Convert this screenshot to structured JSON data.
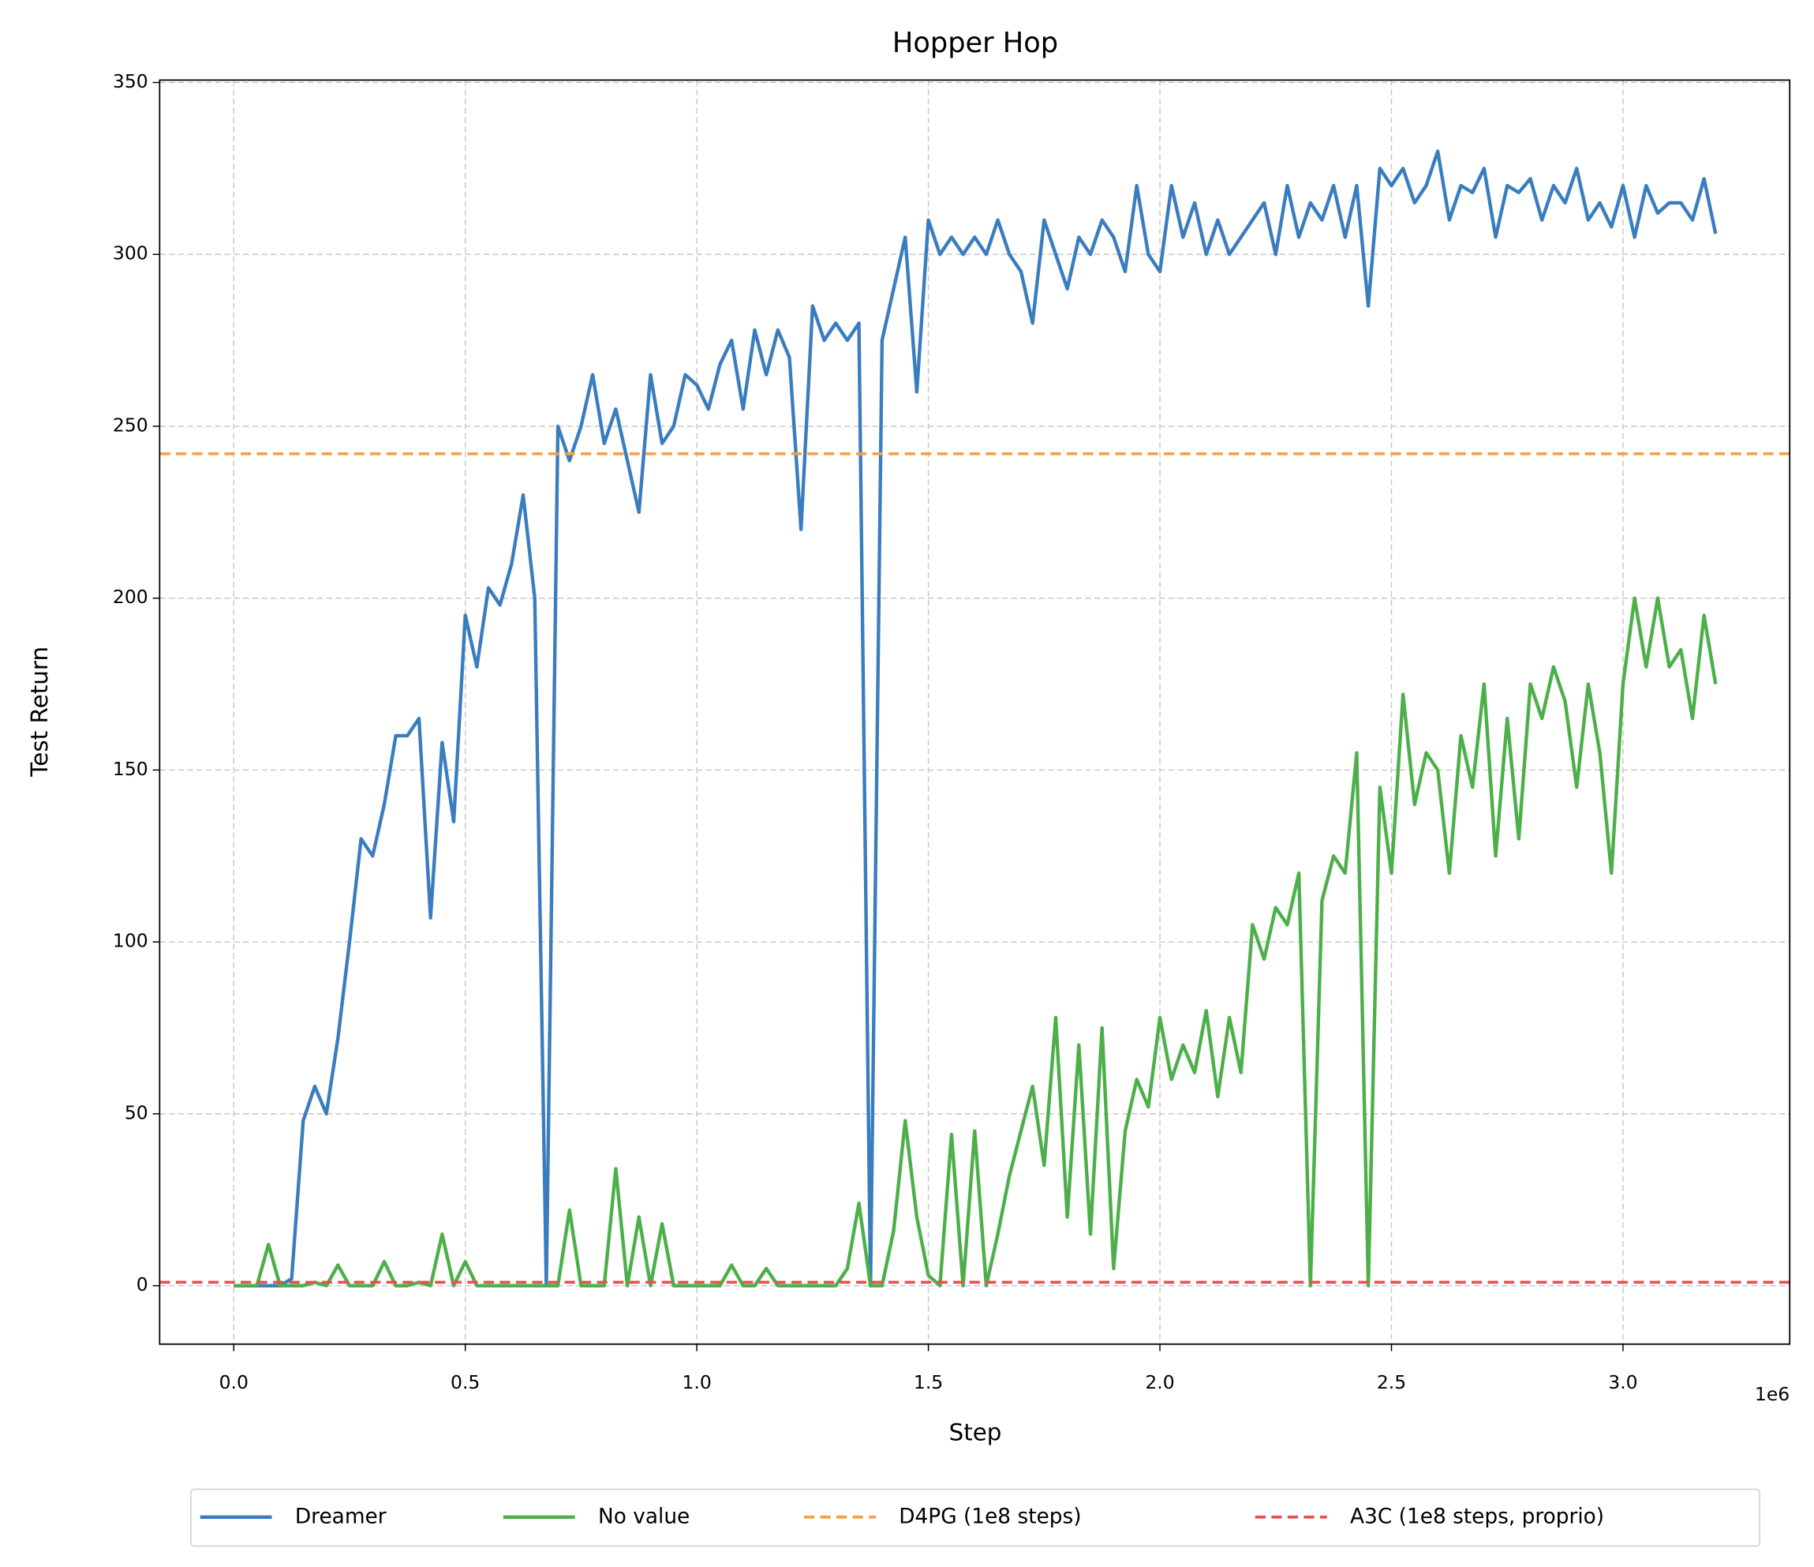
{
  "chart_data": {
    "type": "line",
    "title": "Hopper Hop",
    "xlabel": "Step",
    "ylabel": "Test Return",
    "x_offset_label": "1e6",
    "x": [
      0,
      25000,
      50000,
      75000,
      100000,
      125000,
      150000,
      175000,
      200000,
      225000,
      250000,
      275000,
      300000,
      325000,
      350000,
      375000,
      400000,
      425000,
      450000,
      475000,
      500000,
      525000,
      550000,
      575000,
      600000,
      625000,
      650000,
      675000,
      700000,
      725000,
      750000,
      775000,
      800000,
      825000,
      850000,
      875000,
      900000,
      925000,
      950000,
      975000,
      1000000,
      1025000,
      1050000,
      1075000,
      1100000,
      1125000,
      1150000,
      1175000,
      1200000,
      1225000,
      1250000,
      1275000,
      1300000,
      1325000,
      1350000,
      1375000,
      1400000,
      1425000,
      1450000,
      1475000,
      1500000,
      1525000,
      1550000,
      1575000,
      1600000,
      1625000,
      1650000,
      1675000,
      1700000,
      1725000,
      1750000,
      1775000,
      1800000,
      1825000,
      1850000,
      1875000,
      1900000,
      1925000,
      1950000,
      1975000,
      2000000,
      2025000,
      2050000,
      2075000,
      2100000,
      2125000,
      2150000,
      2175000,
      2200000,
      2225000,
      2250000,
      2275000,
      2300000,
      2325000,
      2350000,
      2375000,
      2400000,
      2425000,
      2450000,
      2475000,
      2500000,
      2525000,
      2550000,
      2575000,
      2600000,
      2625000,
      2650000,
      2675000,
      2700000,
      2725000,
      2750000,
      2775000,
      2800000,
      2825000,
      2850000,
      2875000,
      2900000,
      2925000,
      2950000,
      2975000,
      3000000,
      3025000,
      3050000,
      3075000,
      3100000,
      3125000,
      3150000,
      3175000,
      3200000
    ],
    "series": [
      {
        "name": "Dreamer",
        "color": "#3a7dbf",
        "values": [
          0,
          0,
          0,
          0,
          0,
          2,
          48,
          58,
          50,
          72,
          100,
          130,
          125,
          140,
          160,
          160,
          165,
          107,
          158,
          135,
          195,
          180,
          203,
          198,
          210,
          230,
          200,
          0,
          250,
          240,
          250,
          265,
          245,
          255,
          240,
          225,
          265,
          245,
          250,
          265,
          262,
          255,
          268,
          275,
          255,
          278,
          265,
          278,
          270,
          220,
          285,
          275,
          280,
          275,
          280,
          0,
          275,
          290,
          305,
          260,
          310,
          300,
          305,
          300,
          305,
          300,
          310,
          300,
          295,
          280,
          310,
          300,
          290,
          305,
          300,
          310,
          305,
          295,
          320,
          300,
          295,
          320,
          305,
          315,
          300,
          310,
          300,
          305,
          310,
          315,
          300,
          320,
          305,
          315,
          310,
          320,
          305,
          320,
          285,
          325,
          320,
          325,
          315,
          320,
          330,
          310,
          320,
          318,
          325,
          305,
          320,
          318,
          322,
          310,
          320,
          315,
          325,
          310,
          315,
          308,
          320,
          305,
          320,
          312,
          315,
          315,
          310,
          322,
          306
        ]
      },
      {
        "name": "No value",
        "color": "#4daf4a",
        "values": [
          0,
          0,
          0,
          12,
          0,
          0,
          0,
          1,
          0,
          6,
          0,
          0,
          0,
          7,
          0,
          0,
          1,
          0,
          15,
          0,
          7,
          0,
          0,
          0,
          0,
          0,
          0,
          0,
          0,
          22,
          0,
          0,
          0,
          34,
          0,
          20,
          0,
          18,
          0,
          0,
          0,
          0,
          0,
          6,
          0,
          0,
          5,
          0,
          0,
          0,
          0,
          0,
          0,
          5,
          24,
          0,
          0,
          16,
          48,
          20,
          3,
          0,
          44,
          0,
          45,
          0,
          15,
          32,
          45,
          58,
          35,
          78,
          20,
          70,
          15,
          75,
          5,
          45,
          60,
          52,
          78,
          60,
          70,
          62,
          80,
          55,
          78,
          62,
          105,
          95,
          110,
          105,
          120,
          0,
          112,
          125,
          120,
          155,
          0,
          145,
          120,
          172,
          140,
          155,
          150,
          120,
          160,
          145,
          175,
          125,
          165,
          130,
          175,
          165,
          180,
          170,
          145,
          175,
          155,
          120,
          175,
          200,
          180,
          200,
          180,
          185,
          165,
          195,
          175
        ]
      },
      {
        "name": "D4PG (1e8 steps)",
        "color": "#f5a042",
        "value": 242,
        "linestyle": "dashed"
      },
      {
        "name": "A3C (1e8 steps, proprio)",
        "color": "#e8504f",
        "value": 1,
        "linestyle": "dashed"
      }
    ],
    "xlim": [
      -160000,
      3360000
    ],
    "ylim": [
      -17,
      350.7
    ],
    "xticks": [
      {
        "value": 0,
        "label": "0.0"
      },
      {
        "value": 500000,
        "label": "0.5"
      },
      {
        "value": 1000000,
        "label": "1.0"
      },
      {
        "value": 1500000,
        "label": "1.5"
      },
      {
        "value": 2000000,
        "label": "2.0"
      },
      {
        "value": 2500000,
        "label": "2.5"
      },
      {
        "value": 3000000,
        "label": "3.0"
      }
    ],
    "yticks": [
      0,
      50,
      100,
      150,
      200,
      250,
      300,
      350
    ],
    "grid": true,
    "legend": "bottom"
  }
}
